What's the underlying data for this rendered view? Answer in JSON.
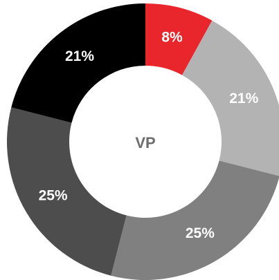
{
  "chart_data": {
    "type": "pie",
    "title": "VP",
    "values": [
      8,
      21,
      25,
      25,
      21
    ],
    "value_labels": [
      "8%",
      "21%",
      "25%",
      "25%",
      "21%"
    ],
    "colors": [
      "#e8262b",
      "#b3b3b3",
      "#808080",
      "#4d4d4d",
      "#000000"
    ],
    "donut": true
  }
}
